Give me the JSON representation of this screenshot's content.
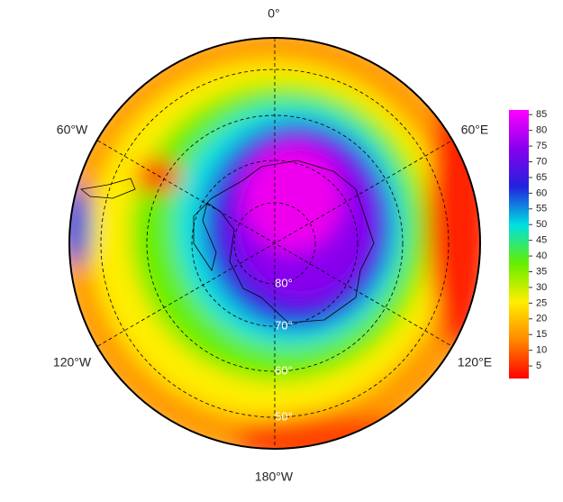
{
  "map": {
    "longitude_labels": [
      "0°",
      "60°E",
      "120°E",
      "180°W",
      "120°W",
      "60°W"
    ],
    "latitude_labels": [
      "80°",
      "70°",
      "60°",
      "50°"
    ]
  },
  "colorbar": {
    "ticks": [
      5,
      10,
      15,
      20,
      25,
      30,
      35,
      40,
      45,
      50,
      55,
      60,
      65,
      70,
      75,
      80,
      85
    ],
    "lim": [
      1,
      86.5
    ],
    "colors": [
      "#ff0000",
      "#ff8800",
      "#ffee00",
      "#66ee00",
      "#00e0e0",
      "#2222dd",
      "#8800ee",
      "#ff00ff"
    ]
  }
}
